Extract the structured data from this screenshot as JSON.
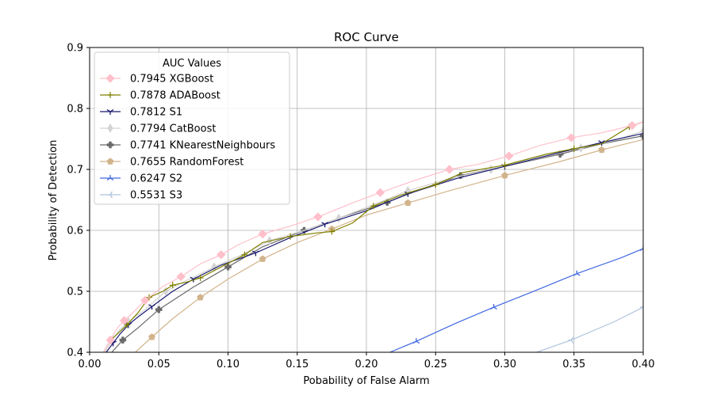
{
  "chart_data": {
    "type": "line",
    "title": "ROC Curve",
    "xlabel": "Pobability of False Alarm",
    "ylabel": "Probability of Detection",
    "xlim": [
      0.0,
      0.4
    ],
    "ylim": [
      0.4,
      0.9
    ],
    "xticks": [
      0.0,
      0.05,
      0.1,
      0.15,
      0.2,
      0.25,
      0.3,
      0.35,
      0.4
    ],
    "xtick_labels": [
      "0.00",
      "0.05",
      "0.10",
      "0.15",
      "0.20",
      "0.25",
      "0.30",
      "0.35",
      "0.40"
    ],
    "yticks": [
      0.4,
      0.5,
      0.6,
      0.7,
      0.8,
      0.9
    ],
    "ytick_labels": [
      "0.4",
      "0.5",
      "0.6",
      "0.7",
      "0.8",
      "0.9"
    ],
    "grid": true,
    "legend": {
      "title": "AUC Values",
      "position": "top-left"
    },
    "series": [
      {
        "name": "0.7945 XGBoost",
        "color": "#ffc0cb",
        "marker": "diamond",
        "x": [
          0.01,
          0.015,
          0.02,
          0.025,
          0.03,
          0.04,
          0.053,
          0.066,
          0.08,
          0.095,
          0.107,
          0.125,
          0.145,
          0.165,
          0.19,
          0.21,
          0.235,
          0.26,
          0.28,
          0.303,
          0.325,
          0.348,
          0.37,
          0.392,
          0.4
        ],
        "y": [
          0.4,
          0.42,
          0.44,
          0.452,
          0.462,
          0.485,
          0.508,
          0.524,
          0.545,
          0.56,
          0.576,
          0.594,
          0.607,
          0.622,
          0.645,
          0.662,
          0.682,
          0.7,
          0.708,
          0.722,
          0.739,
          0.752,
          0.76,
          0.772,
          0.778
        ]
      },
      {
        "name": "0.7878 ADABoost",
        "color": "#808000",
        "marker": "plus",
        "x": [
          0.01,
          0.015,
          0.02,
          0.027,
          0.035,
          0.043,
          0.053,
          0.06,
          0.07,
          0.08,
          0.095,
          0.112,
          0.125,
          0.145,
          0.165,
          0.175,
          0.19,
          0.205,
          0.225,
          0.25,
          0.27,
          0.3,
          0.33,
          0.35,
          0.37,
          0.39,
          0.4
        ],
        "y": [
          0.4,
          0.42,
          0.43,
          0.445,
          0.465,
          0.49,
          0.5,
          0.51,
          0.515,
          0.522,
          0.54,
          0.56,
          0.58,
          0.59,
          0.596,
          0.598,
          0.612,
          0.64,
          0.658,
          0.675,
          0.695,
          0.707,
          0.725,
          0.734,
          0.742,
          0.77,
          0.778
        ]
      },
      {
        "name": "0.7812 S1",
        "color": "#191970",
        "marker": "tri_down",
        "x": [
          0.012,
          0.017,
          0.022,
          0.028,
          0.035,
          0.045,
          0.06,
          0.075,
          0.095,
          0.12,
          0.145,
          0.17,
          0.2,
          0.23,
          0.265,
          0.3,
          0.34,
          0.37,
          0.4
        ],
        "y": [
          0.4,
          0.415,
          0.43,
          0.445,
          0.458,
          0.475,
          0.5,
          0.52,
          0.543,
          0.563,
          0.588,
          0.61,
          0.632,
          0.66,
          0.685,
          0.705,
          0.728,
          0.744,
          0.759
        ]
      },
      {
        "name": "0.7794 CatBoost",
        "color": "#d3d3d3",
        "marker": "thin_diamond",
        "x": [
          0.011,
          0.016,
          0.021,
          0.028,
          0.04,
          0.055,
          0.07,
          0.09,
          0.11,
          0.13,
          0.155,
          0.18,
          0.205,
          0.23,
          0.26,
          0.29,
          0.32,
          0.355,
          0.38,
          0.4
        ],
        "y": [
          0.4,
          0.418,
          0.435,
          0.45,
          0.47,
          0.5,
          0.518,
          0.54,
          0.56,
          0.583,
          0.6,
          0.62,
          0.642,
          0.665,
          0.685,
          0.7,
          0.716,
          0.735,
          0.748,
          0.763
        ]
      },
      {
        "name": "0.7741 KNearestNeighbours",
        "color": "#696969",
        "marker": "filled_plus",
        "x": [
          0.016,
          0.024,
          0.035,
          0.05,
          0.075,
          0.1,
          0.125,
          0.155,
          0.185,
          0.215,
          0.24,
          0.268,
          0.3,
          0.34,
          0.37,
          0.4
        ],
        "y": [
          0.4,
          0.42,
          0.44,
          0.47,
          0.507,
          0.54,
          0.573,
          0.6,
          0.624,
          0.646,
          0.668,
          0.69,
          0.705,
          0.725,
          0.742,
          0.755
        ]
      },
      {
        "name": "0.7655 RandomForest",
        "color": "#d2b48c",
        "marker": "pentagon",
        "x": [
          0.033,
          0.045,
          0.06,
          0.08,
          0.1,
          0.125,
          0.15,
          0.175,
          0.2,
          0.23,
          0.26,
          0.3,
          0.34,
          0.37,
          0.4
        ],
        "y": [
          0.4,
          0.425,
          0.455,
          0.49,
          0.52,
          0.553,
          0.58,
          0.602,
          0.625,
          0.645,
          0.665,
          0.69,
          0.713,
          0.732,
          0.749
        ]
      },
      {
        "name": "0.6247 S2",
        "color": "#4169e1",
        "marker": "tri_up",
        "x": [
          0.217,
          0.236,
          0.264,
          0.292,
          0.322,
          0.352,
          0.384,
          0.4
        ],
        "y": [
          0.4,
          0.418,
          0.447,
          0.474,
          0.501,
          0.529,
          0.555,
          0.57
        ]
      },
      {
        "name": "0.5531 S3",
        "color": "#b0c4de",
        "marker": "tri_left",
        "x": [
          0.323,
          0.348,
          0.379,
          0.4
        ],
        "y": [
          0.4,
          0.42,
          0.45,
          0.474
        ]
      }
    ]
  }
}
